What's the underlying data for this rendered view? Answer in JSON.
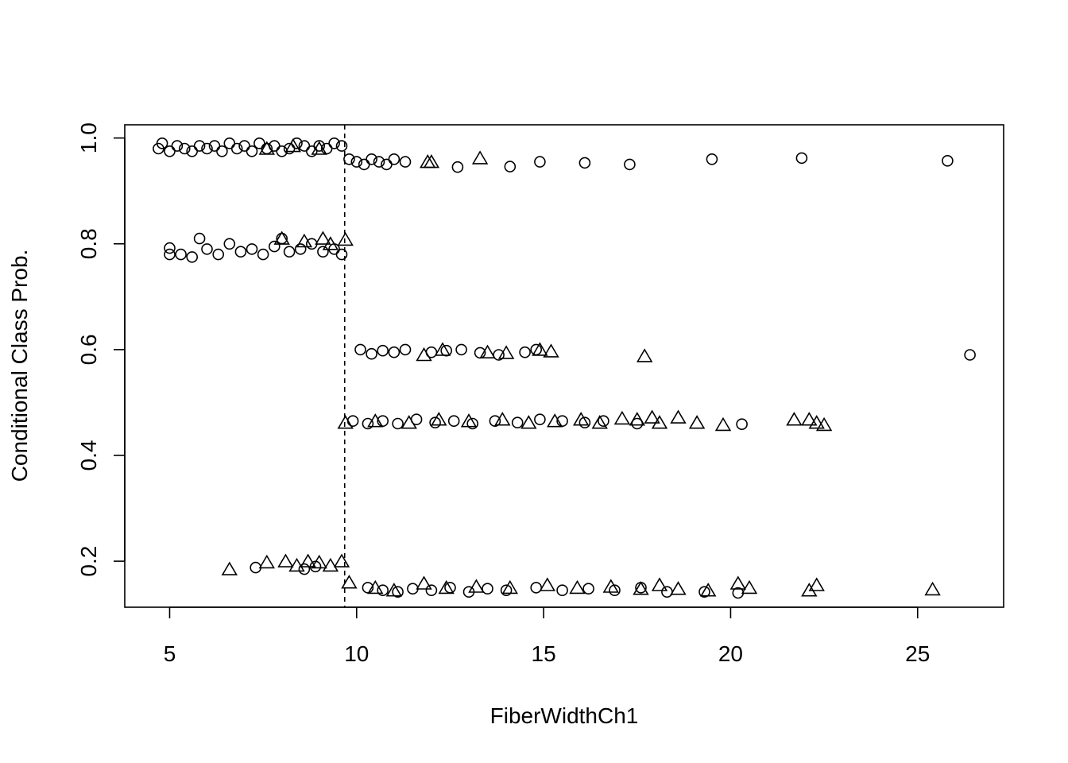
{
  "chart_data": {
    "type": "scatter",
    "xlabel": "FiberWidthCh1",
    "ylabel": "Conditional Class Prob.",
    "xlim": [
      3.8,
      27.3
    ],
    "ylim": [
      0.113,
      1.025
    ],
    "xticks": [
      5,
      10,
      15,
      20,
      25
    ],
    "yticks": [
      0.2,
      0.4,
      0.6,
      0.8,
      1.0
    ],
    "xtick_labels": [
      "5",
      "10",
      "15",
      "20",
      "25"
    ],
    "ytick_labels": [
      "0.2",
      "0.4",
      "0.6",
      "0.8",
      "1.0"
    ],
    "split_line_x": 9.68,
    "split_line_style": "dashed",
    "grid": false,
    "series": [
      {
        "marker": "circle",
        "points": [
          [
            4.7,
            0.98
          ],
          [
            4.8,
            0.99
          ],
          [
            5.0,
            0.975
          ],
          [
            5.2,
            0.985
          ],
          [
            5.4,
            0.98
          ],
          [
            5.6,
            0.975
          ],
          [
            5.8,
            0.985
          ],
          [
            6.0,
            0.98
          ],
          [
            6.2,
            0.985
          ],
          [
            6.4,
            0.975
          ],
          [
            6.6,
            0.99
          ],
          [
            6.8,
            0.98
          ],
          [
            7.0,
            0.985
          ],
          [
            7.2,
            0.975
          ],
          [
            7.4,
            0.99
          ],
          [
            7.6,
            0.98
          ],
          [
            7.8,
            0.985
          ],
          [
            8.0,
            0.975
          ],
          [
            8.2,
            0.98
          ],
          [
            8.4,
            0.99
          ],
          [
            8.6,
            0.985
          ],
          [
            8.8,
            0.975
          ],
          [
            9.0,
            0.985
          ],
          [
            9.2,
            0.98
          ],
          [
            9.4,
            0.99
          ],
          [
            9.6,
            0.985
          ],
          [
            9.8,
            0.96
          ],
          [
            10.0,
            0.955
          ],
          [
            10.2,
            0.95
          ],
          [
            10.4,
            0.96
          ],
          [
            10.6,
            0.955
          ],
          [
            10.8,
            0.95
          ],
          [
            11.0,
            0.96
          ],
          [
            11.3,
            0.955
          ],
          [
            12.7,
            0.945
          ],
          [
            14.1,
            0.946
          ],
          [
            14.9,
            0.955
          ],
          [
            16.1,
            0.953
          ],
          [
            17.3,
            0.95
          ],
          [
            19.5,
            0.96
          ],
          [
            21.9,
            0.962
          ],
          [
            25.8,
            0.957
          ],
          [
            5.0,
            0.78
          ],
          [
            5.0,
            0.792
          ],
          [
            5.3,
            0.78
          ],
          [
            5.6,
            0.775
          ],
          [
            5.8,
            0.81
          ],
          [
            6.0,
            0.79
          ],
          [
            6.3,
            0.78
          ],
          [
            6.6,
            0.8
          ],
          [
            6.9,
            0.785
          ],
          [
            7.2,
            0.79
          ],
          [
            7.5,
            0.78
          ],
          [
            7.8,
            0.795
          ],
          [
            8.0,
            0.81
          ],
          [
            8.2,
            0.785
          ],
          [
            8.5,
            0.79
          ],
          [
            8.8,
            0.8
          ],
          [
            9.1,
            0.785
          ],
          [
            9.4,
            0.79
          ],
          [
            9.6,
            0.78
          ],
          [
            10.1,
            0.6
          ],
          [
            10.4,
            0.592
          ],
          [
            10.7,
            0.598
          ],
          [
            11.0,
            0.595
          ],
          [
            11.3,
            0.6
          ],
          [
            12.0,
            0.595
          ],
          [
            12.4,
            0.598
          ],
          [
            12.8,
            0.6
          ],
          [
            13.3,
            0.594
          ],
          [
            13.8,
            0.59
          ],
          [
            14.5,
            0.595
          ],
          [
            14.8,
            0.6
          ],
          [
            26.4,
            0.59
          ],
          [
            9.9,
            0.465
          ],
          [
            10.3,
            0.46
          ],
          [
            10.7,
            0.465
          ],
          [
            11.1,
            0.46
          ],
          [
            11.6,
            0.468
          ],
          [
            12.1,
            0.462
          ],
          [
            12.6,
            0.465
          ],
          [
            13.1,
            0.46
          ],
          [
            13.7,
            0.465
          ],
          [
            14.3,
            0.462
          ],
          [
            14.9,
            0.468
          ],
          [
            15.5,
            0.465
          ],
          [
            16.1,
            0.462
          ],
          [
            16.6,
            0.465
          ],
          [
            17.5,
            0.46
          ],
          [
            20.3,
            0.459
          ],
          [
            7.3,
            0.188
          ],
          [
            8.6,
            0.185
          ],
          [
            8.9,
            0.19
          ],
          [
            10.3,
            0.15
          ],
          [
            10.7,
            0.145
          ],
          [
            11.1,
            0.142
          ],
          [
            11.5,
            0.148
          ],
          [
            12.0,
            0.145
          ],
          [
            12.5,
            0.15
          ],
          [
            13.0,
            0.142
          ],
          [
            13.5,
            0.148
          ],
          [
            14.0,
            0.145
          ],
          [
            14.8,
            0.15
          ],
          [
            15.5,
            0.145
          ],
          [
            16.2,
            0.148
          ],
          [
            16.9,
            0.145
          ],
          [
            17.6,
            0.15
          ],
          [
            18.3,
            0.142
          ],
          [
            19.3,
            0.142
          ],
          [
            20.2,
            0.14
          ]
        ]
      },
      {
        "marker": "triangle",
        "points": [
          [
            7.6,
            0.98
          ],
          [
            8.3,
            0.985
          ],
          [
            9.0,
            0.98
          ],
          [
            8.0,
            0.81
          ],
          [
            8.6,
            0.805
          ],
          [
            9.1,
            0.81
          ],
          [
            9.3,
            0.8
          ],
          [
            9.7,
            0.808
          ],
          [
            11.9,
            0.955
          ],
          [
            12.0,
            0.955
          ],
          [
            13.3,
            0.962
          ],
          [
            11.8,
            0.59
          ],
          [
            12.3,
            0.6
          ],
          [
            13.5,
            0.595
          ],
          [
            14.0,
            0.594
          ],
          [
            14.9,
            0.6
          ],
          [
            15.2,
            0.597
          ],
          [
            17.7,
            0.588
          ],
          [
            9.7,
            0.462
          ],
          [
            10.5,
            0.465
          ],
          [
            11.4,
            0.462
          ],
          [
            12.2,
            0.468
          ],
          [
            13.0,
            0.465
          ],
          [
            13.9,
            0.468
          ],
          [
            14.6,
            0.462
          ],
          [
            15.3,
            0.465
          ],
          [
            16.0,
            0.468
          ],
          [
            16.5,
            0.462
          ],
          [
            17.1,
            0.47
          ],
          [
            17.5,
            0.468
          ],
          [
            17.9,
            0.472
          ],
          [
            18.1,
            0.462
          ],
          [
            18.6,
            0.472
          ],
          [
            19.1,
            0.462
          ],
          [
            19.8,
            0.458
          ],
          [
            21.7,
            0.468
          ],
          [
            22.1,
            0.468
          ],
          [
            22.3,
            0.462
          ],
          [
            22.5,
            0.458
          ],
          [
            6.6,
            0.185
          ],
          [
            7.6,
            0.198
          ],
          [
            8.1,
            0.2
          ],
          [
            8.4,
            0.192
          ],
          [
            8.7,
            0.2
          ],
          [
            9.0,
            0.198
          ],
          [
            9.3,
            0.192
          ],
          [
            9.6,
            0.2
          ],
          [
            9.8,
            0.16
          ],
          [
            10.5,
            0.15
          ],
          [
            11.0,
            0.145
          ],
          [
            11.8,
            0.158
          ],
          [
            12.4,
            0.15
          ],
          [
            13.2,
            0.152
          ],
          [
            14.1,
            0.15
          ],
          [
            15.1,
            0.155
          ],
          [
            15.9,
            0.15
          ],
          [
            16.8,
            0.152
          ],
          [
            17.6,
            0.148
          ],
          [
            18.1,
            0.155
          ],
          [
            18.6,
            0.148
          ],
          [
            19.4,
            0.145
          ],
          [
            20.2,
            0.158
          ],
          [
            20.5,
            0.15
          ],
          [
            22.1,
            0.145
          ],
          [
            22.3,
            0.155
          ],
          [
            25.4,
            0.147
          ]
        ]
      }
    ]
  }
}
